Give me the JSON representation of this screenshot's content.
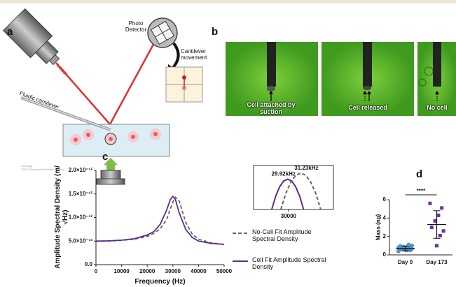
{
  "panel_labels": [
    "a",
    "b",
    "c",
    "d"
  ],
  "diagram": {
    "laser": "Laser",
    "photo_detector": "Photo Detector",
    "cantilever_movement": "Cantilever movement",
    "fluidic_cantilever": "Fluidic cantilever",
    "credit": [
      "J.Gingrig",
      "©2023 Broad Abad Health System"
    ]
  },
  "micrographs": {
    "captions": [
      "Cell attached by suction",
      "Cell released",
      "No cell"
    ]
  },
  "chart_data": [
    {
      "type": "line",
      "xlabel": "Frequency (Hz)",
      "ylabel": "Amplitude Spectral Density (m/√Hz)",
      "x": [
        0,
        5000,
        10000,
        15000,
        20000,
        22500,
        25000,
        27500,
        29000,
        30000,
        31000,
        32500,
        35000,
        37500,
        40000,
        45000,
        50000
      ],
      "series": [
        {
          "name": "No-Cell Fit Amplitude Spectral Density",
          "color": "#666666",
          "style": "dashed",
          "values": [
            4.95e-13,
            5e-13,
            5.15e-13,
            5.4e-13,
            6e-13,
            6.6e-13,
            7.6e-13,
            9.5e-13,
            1.18e-12,
            1.33e-12,
            1.43e-12,
            1.35e-12,
            9e-13,
            6.5e-13,
            5.4e-13,
            4.6e-13,
            4.3e-13
          ]
        },
        {
          "name": "Cell Fit Amplitude Spectral Density",
          "color": "#5b2d90",
          "style": "solid",
          "values": [
            5e-13,
            5.05e-13,
            5.2e-13,
            5.5e-13,
            6.3e-13,
            7e-13,
            8.5e-13,
            1.15e-12,
            1.38e-12,
            1.45e-12,
            1.38e-12,
            1.1e-12,
            7.5e-13,
            5.8e-13,
            5e-13,
            4.5e-13,
            4.3e-13
          ]
        }
      ],
      "xlim": [
        0,
        50000
      ],
      "xticks": [
        0,
        10000,
        20000,
        30000,
        40000,
        50000
      ],
      "ylim": [
        0,
        2e-12
      ],
      "yticks": [
        {
          "value": 0,
          "label": "0.0"
        },
        {
          "value": 5e-13,
          "label": "5.0×10⁻¹³"
        },
        {
          "value": 1e-12,
          "label": "1.0×10⁻¹²"
        },
        {
          "value": 1.5e-12,
          "label": "1.5×10⁻¹²"
        },
        {
          "value": 2e-12,
          "label": "2.0×10⁻¹²"
        }
      ],
      "legend": "right"
    },
    {
      "type": "line",
      "frame": true,
      "series": [
        {
          "color": "#5b2d90",
          "style": "solid",
          "peak_label": "29.92kHz",
          "x": [
            28320,
            28720,
            29120,
            29520,
            29920,
            30320,
            30720,
            31120,
            31520
          ],
          "values": [
            0,
            0.44,
            0.75,
            0.94,
            1,
            0.94,
            0.75,
            0.44,
            0
          ]
        },
        {
          "color": "#666666",
          "style": "dashed",
          "peak_label": "31.23kHz",
          "x": [
            29230,
            29730,
            30230,
            30730,
            31230,
            31730,
            32230,
            32730,
            33230
          ],
          "values": [
            0,
            0.53,
            0.9,
            1.13,
            1.2,
            1.13,
            0.9,
            0.53,
            0
          ]
        }
      ],
      "xlim": [
        26500,
        34500
      ],
      "xticks": [
        30000
      ],
      "ylim": [
        0,
        1.45
      ]
    },
    {
      "type": "dot",
      "ylabel": "Mass (ng)",
      "categories": [
        "Day 0",
        "Day 173"
      ],
      "annotation": "****",
      "ylim": [
        0,
        6
      ],
      "yticks": [
        0,
        2,
        4,
        6
      ],
      "groups": [
        {
          "color": "#5b9bd5",
          "marker": "circle",
          "mean": 0.7,
          "sd": 0.25,
          "values": [
            0.4,
            0.5,
            0.5,
            0.6,
            0.6,
            0.65,
            0.7,
            0.7,
            0.75,
            0.8,
            0.8,
            0.85,
            0.9,
            0.95,
            1.0,
            1.1,
            0.55
          ]
        },
        {
          "color": "#7030a0",
          "marker": "square",
          "mean": 3.3,
          "sd": 1.5,
          "values": [
            5.6,
            5.1,
            4.3,
            3.7,
            3.0,
            2.6,
            2.1,
            1.0
          ]
        }
      ]
    }
  ]
}
